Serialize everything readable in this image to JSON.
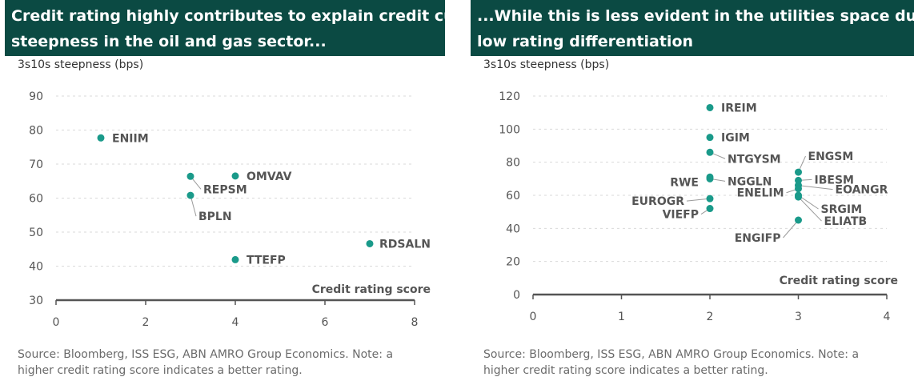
{
  "chart_data": [
    {
      "type": "scatter",
      "title_lines": [
        "Credit rating highly contributes to explain credit curve",
        "steepness in the oil and gas sector..."
      ],
      "ylabel": "3s10s steepness (bps)",
      "xlabel": "Credit rating score",
      "xlim": [
        0,
        8
      ],
      "ylim": [
        30,
        90
      ],
      "xticks": [
        0,
        2,
        4,
        6,
        8
      ],
      "yticks": [
        30,
        40,
        50,
        60,
        70,
        80,
        90
      ],
      "grid": "horizontal-dashed",
      "marker_color": "#1a9a8a",
      "points": [
        {
          "label": "ENIIM",
          "x": 1,
          "y": 77.7
        },
        {
          "label": "REPSM",
          "x": 3,
          "y": 66.4
        },
        {
          "label": "OMVAV",
          "x": 4,
          "y": 66.5
        },
        {
          "label": "BPLN",
          "x": 3,
          "y": 60.8
        },
        {
          "label": "RDSALN",
          "x": 7,
          "y": 46.6
        },
        {
          "label": "TTEFP",
          "x": 4,
          "y": 41.9
        }
      ],
      "source_lines": [
        "Source: Bloomberg, ISS ESG, ABN AMRO Group Economics. Note: a",
        "higher credit rating score indicates a better rating."
      ]
    },
    {
      "type": "scatter",
      "title_lines": [
        "...While this is less evident in the utilities space due to",
        "low rating differentiation"
      ],
      "ylabel": "3s10s steepness (bps)",
      "xlabel": "Credit rating score",
      "xlim": [
        0,
        4
      ],
      "ylim": [
        0,
        120
      ],
      "xticks": [
        0,
        1,
        2,
        3,
        4
      ],
      "yticks": [
        0,
        20,
        40,
        60,
        80,
        100,
        120
      ],
      "grid": "horizontal-dashed",
      "marker_color": "#1a9a8a",
      "points": [
        {
          "label": "IREIM",
          "x": 2,
          "y": 113
        },
        {
          "label": "IGIM",
          "x": 2,
          "y": 95
        },
        {
          "label": "NTGYSM",
          "x": 2,
          "y": 86
        },
        {
          "label": "RWE",
          "x": 2,
          "y": 71
        },
        {
          "label": "NGGLN",
          "x": 2,
          "y": 70
        },
        {
          "label": "EUROGR",
          "x": 2,
          "y": 58
        },
        {
          "label": "VIEFP",
          "x": 2,
          "y": 52
        },
        {
          "label": "ENGSM",
          "x": 3,
          "y": 74
        },
        {
          "label": "IBESM",
          "x": 3,
          "y": 69
        },
        {
          "label": "EOANGR",
          "x": 3,
          "y": 66
        },
        {
          "label": "ENELIM",
          "x": 3,
          "y": 64
        },
        {
          "label": "SRGIM",
          "x": 3,
          "y": 60
        },
        {
          "label": "ELIATB",
          "x": 3,
          "y": 59
        },
        {
          "label": "ENGIFP",
          "x": 3,
          "y": 45
        }
      ],
      "source_lines": [
        "Source:  Bloomberg, ISS ESG, ABN AMRO Group Economics. Note: a",
        "higher credit rating score indicates a better rating."
      ]
    }
  ]
}
